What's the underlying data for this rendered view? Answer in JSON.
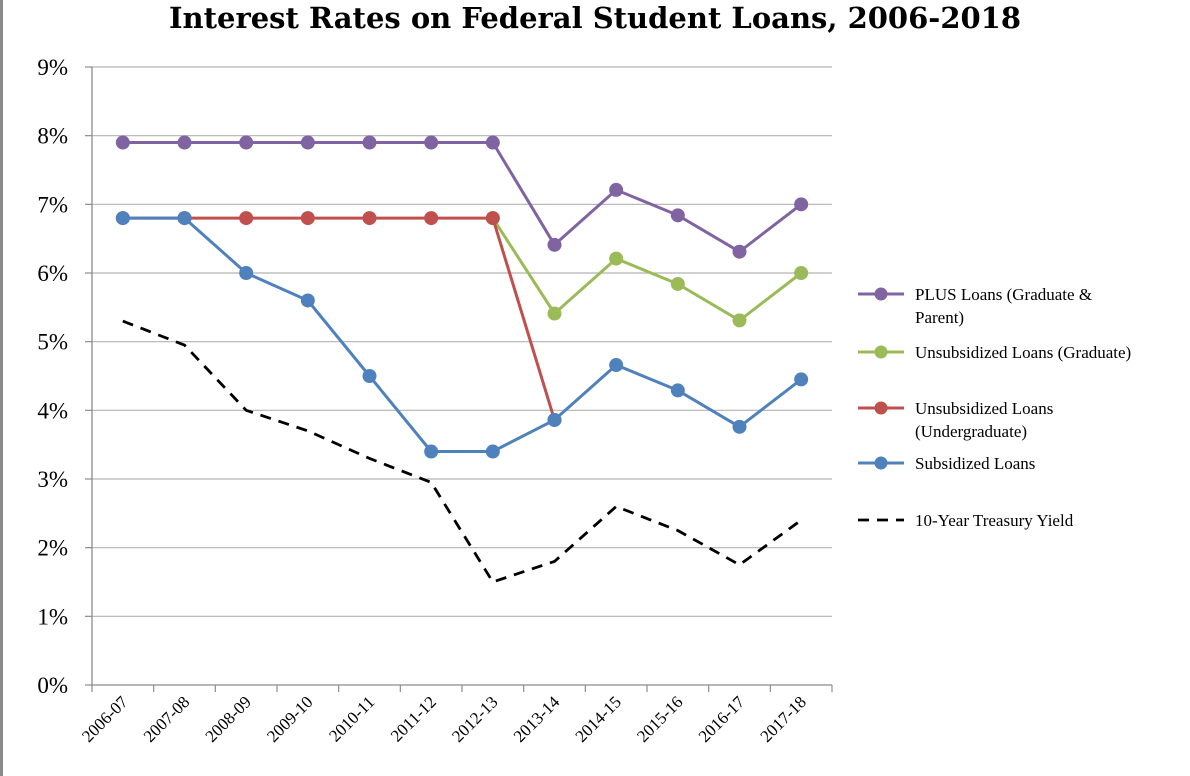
{
  "chart_data": {
    "type": "line",
    "title": "Interest Rates on Federal Student Loans, 2006-2018",
    "xlabel": "",
    "ylabel": "",
    "categories": [
      "2006-07",
      "2007-08",
      "2008-09",
      "2009-10",
      "2010-11",
      "2011-12",
      "2012-13",
      "2013-14",
      "2014-15",
      "2015-16",
      "2016-17",
      "2017-18"
    ],
    "ylim": [
      0,
      9
    ],
    "yticks": [
      0,
      1,
      2,
      3,
      4,
      5,
      6,
      7,
      8,
      9
    ],
    "ytick_labels": [
      "0%",
      "1%",
      "2%",
      "3%",
      "4%",
      "5%",
      "6%",
      "7%",
      "8%",
      "9%"
    ],
    "grid": "horizontal",
    "legend_position": "right",
    "series": [
      {
        "name": "PLUS Loans (Graduate & Parent)",
        "legend_lines": [
          "PLUS Loans (Graduate &",
          "Parent)"
        ],
        "color": "#8064a2",
        "style": "solid",
        "markers": true,
        "values": [
          7.9,
          7.9,
          7.9,
          7.9,
          7.9,
          7.9,
          7.9,
          6.41,
          7.21,
          6.84,
          6.31,
          7.0
        ]
      },
      {
        "name": "Unsubsidized Loans (Graduate)",
        "legend_lines": [
          "Unsubsidized Loans (Graduate)"
        ],
        "color": "#9bbb59",
        "style": "solid",
        "markers": true,
        "values": [
          null,
          null,
          null,
          null,
          null,
          null,
          6.8,
          5.41,
          6.21,
          5.84,
          5.31,
          6.0
        ]
      },
      {
        "name": "Unsubsidized Loans (Undergraduate)",
        "legend_lines": [
          "Unsubsidized Loans",
          "(Undergraduate)"
        ],
        "color": "#c0504d",
        "style": "solid",
        "markers": true,
        "values": [
          6.8,
          6.8,
          6.8,
          6.8,
          6.8,
          6.8,
          6.8,
          3.86,
          null,
          null,
          null,
          null
        ]
      },
      {
        "name": "Subsidized Loans",
        "legend_lines": [
          "Subsidized Loans"
        ],
        "color": "#4f81bd",
        "style": "solid",
        "markers": true,
        "values": [
          6.8,
          6.8,
          6.0,
          5.6,
          4.5,
          3.4,
          3.4,
          3.86,
          4.66,
          4.29,
          3.76,
          4.45
        ]
      },
      {
        "name": "10-Year Treasury Yield",
        "legend_lines": [
          "10-Year Treasury Yield"
        ],
        "color": "#000000",
        "style": "dashed",
        "markers": false,
        "values": [
          5.3,
          4.95,
          4.0,
          3.7,
          3.3,
          2.95,
          1.5,
          1.8,
          2.6,
          2.25,
          1.75,
          2.4
        ]
      }
    ]
  }
}
